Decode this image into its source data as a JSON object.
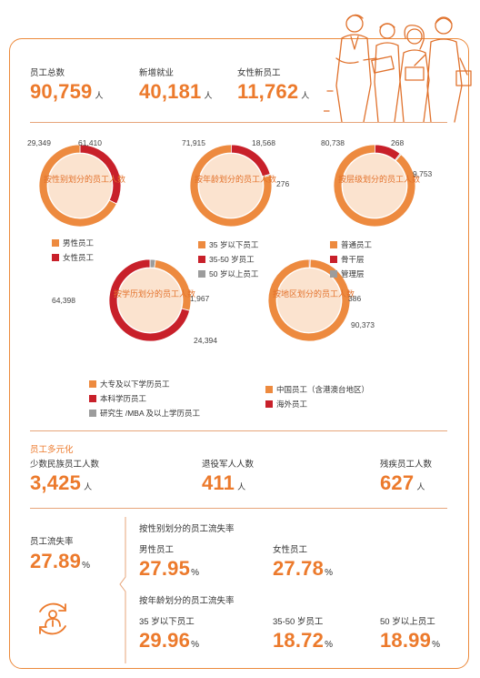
{
  "colors": {
    "orange": "#ec7a2c",
    "donut_orange": "#ed8a3f",
    "red": "#c8202a",
    "gray": "#9c9c9c",
    "light_orange": "#fbe3cf"
  },
  "summary": [
    {
      "label": "员工总数",
      "value": "90,759",
      "unit": "人"
    },
    {
      "label": "新增就业",
      "value": "40,181",
      "unit": "人"
    },
    {
      "label": "女性新员工",
      "value": "11,762",
      "unit": "人"
    }
  ],
  "chart_data": [
    {
      "type": "pie",
      "title": "按性别划分的员工人数",
      "slices": [
        {
          "name": "男性员工",
          "value": 61410
        },
        {
          "name": "女性员工",
          "value": 29349
        }
      ],
      "value_labels": [
        "61,410",
        "29,349"
      ]
    },
    {
      "type": "pie",
      "title": "按年龄划分的员工人数",
      "slices": [
        {
          "name": "35 岁以下员工",
          "value": 71915
        },
        {
          "name": "35-50 岁员工",
          "value": 18568
        },
        {
          "name": "50 岁以上员工",
          "value": 276
        }
      ],
      "value_labels": [
        "71,915",
        "18,568",
        "276"
      ]
    },
    {
      "type": "pie",
      "title": "按层级划分的员工人数",
      "slices": [
        {
          "name": "普通员工",
          "value": 80738
        },
        {
          "name": "骨干层",
          "value": 9753
        },
        {
          "name": "管理层",
          "value": 268
        }
      ],
      "value_labels": [
        "80,738",
        "9,753",
        "268"
      ]
    },
    {
      "type": "pie",
      "title": "按学历划分的员工人数",
      "slices": [
        {
          "name": "大专及以下学历员工",
          "value": 24394
        },
        {
          "name": "本科学历员工",
          "value": 64398
        },
        {
          "name": "研究生 /MBA 及以上学历员工",
          "value": 1967
        }
      ],
      "value_labels": [
        "24,394",
        "64,398",
        "1,967"
      ]
    },
    {
      "type": "pie",
      "title": "按地区划分的员工人数",
      "slices": [
        {
          "name": "中国员工（含港澳台地区）",
          "value": 90373
        },
        {
          "name": "海外员工",
          "value": 386
        }
      ],
      "value_labels": [
        "90,373",
        "386"
      ]
    }
  ],
  "diversity": {
    "title": "员工多元化",
    "items": [
      {
        "label": "少数民族员工人数",
        "value": "3,425",
        "unit": "人"
      },
      {
        "label": "退役军人人数",
        "value": "411",
        "unit": "人"
      },
      {
        "label": "残疾员工人数",
        "value": "627",
        "unit": "人"
      }
    ]
  },
  "turnover": {
    "label": "员工流失率",
    "value": "27.89",
    "unit": "%",
    "icon": "person-cycle-icon",
    "by_gender": {
      "title": "按性别划分的员工流失率",
      "items": [
        {
          "label": "男性员工",
          "value": "27.95",
          "unit": "%"
        },
        {
          "label": "女性员工",
          "value": "27.78",
          "unit": "%"
        }
      ]
    },
    "by_age": {
      "title": "按年龄划分的员工流失率",
      "items": [
        {
          "label": "35 岁以下员工",
          "value": "29.96",
          "unit": "%"
        },
        {
          "label": "35-50 岁员工",
          "value": "18.72",
          "unit": "%"
        },
        {
          "label": "50 岁以上员工",
          "value": "18.99",
          "unit": "%"
        }
      ]
    }
  },
  "illustration": "people-meeting-illustration"
}
